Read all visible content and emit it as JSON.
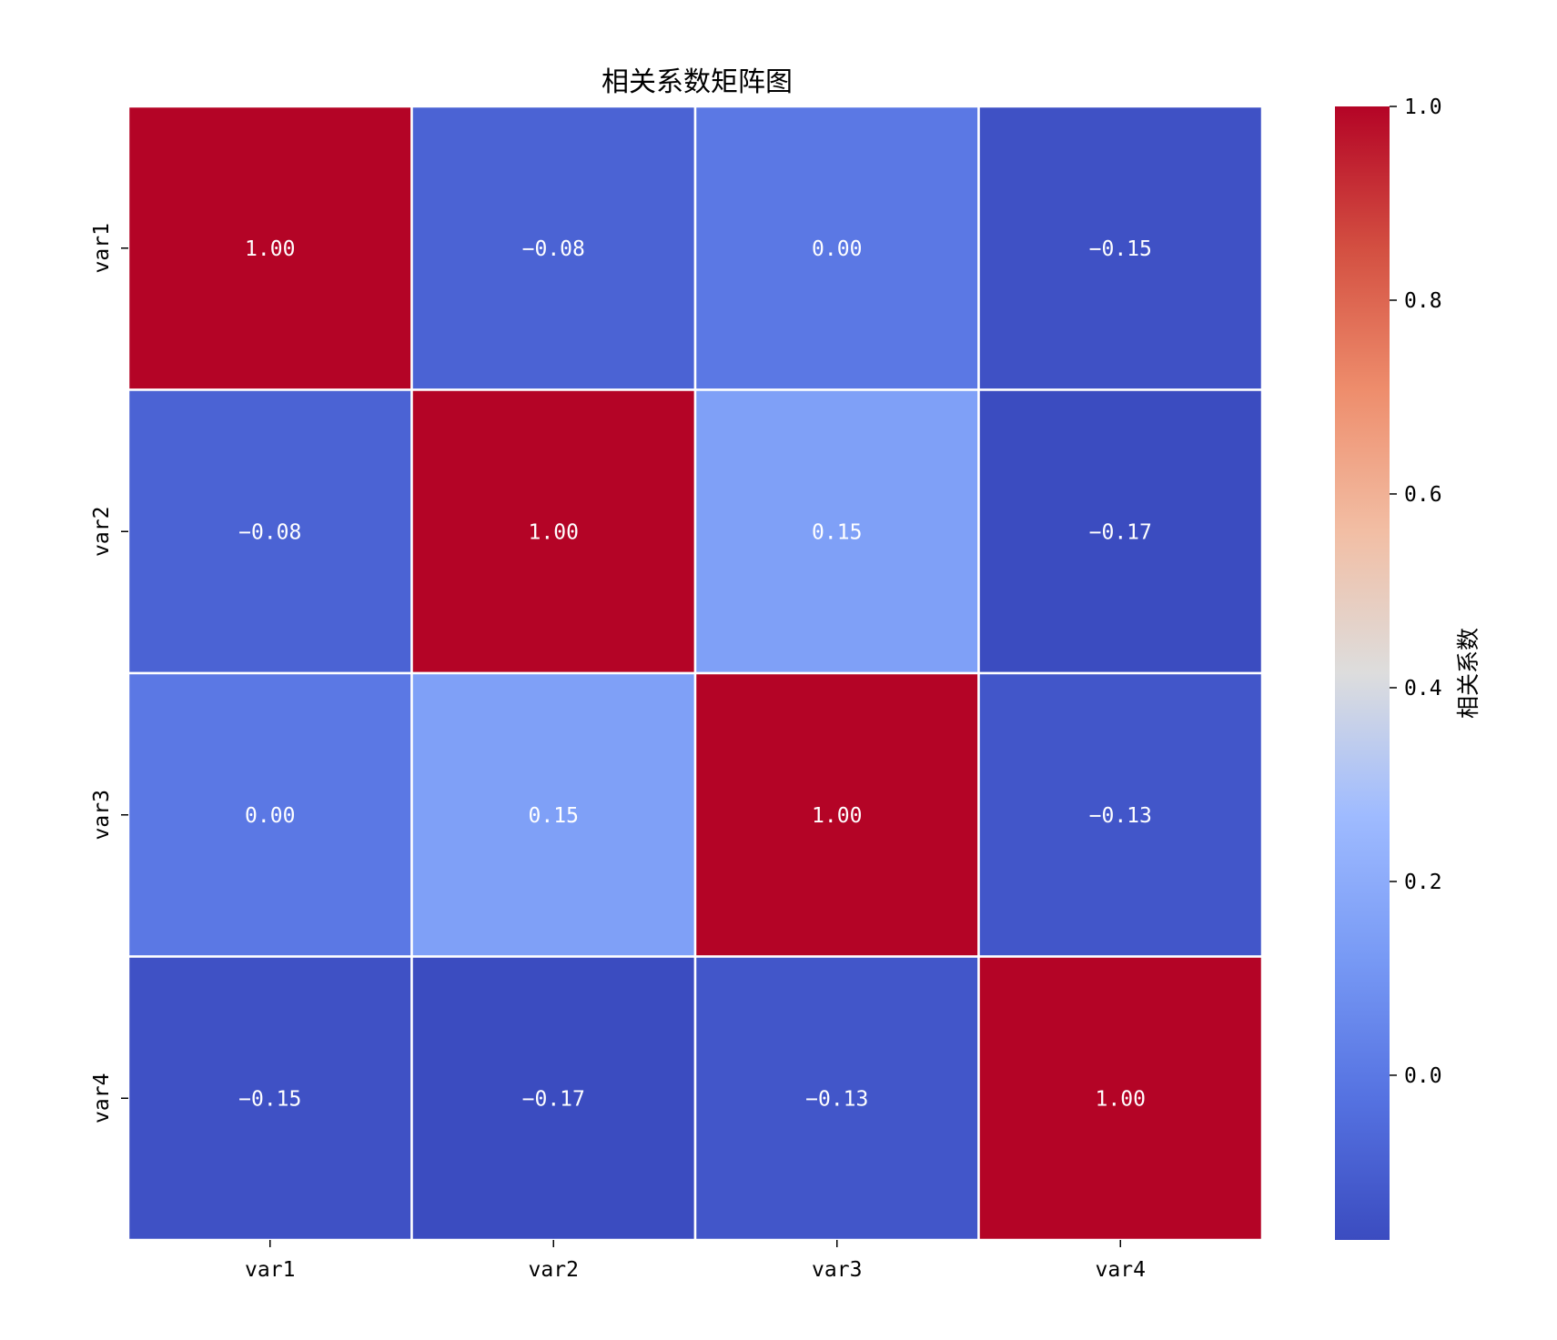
{
  "chart_data": {
    "type": "heatmap",
    "title": "相关系数矩阵图",
    "x_categories": [
      "var1",
      "var2",
      "var3",
      "var4"
    ],
    "y_categories": [
      "var1",
      "var2",
      "var3",
      "var4"
    ],
    "values": [
      [
        1.0,
        -0.08,
        0.0,
        -0.15
      ],
      [
        -0.08,
        1.0,
        0.15,
        -0.17
      ],
      [
        0.0,
        0.15,
        1.0,
        -0.13
      ],
      [
        -0.15,
        -0.17,
        -0.13,
        1.0
      ]
    ],
    "cell_labels": [
      [
        "1.00",
        "−0.08",
        "0.00",
        "−0.15"
      ],
      [
        "−0.08",
        "1.00",
        "0.15",
        "−0.17"
      ],
      [
        "0.00",
        "0.15",
        "1.00",
        "−0.13"
      ],
      [
        "−0.15",
        "−0.17",
        "−0.13",
        "1.00"
      ]
    ],
    "colormap": "coolwarm",
    "colorbar": {
      "label": "相关系数",
      "range": [
        -0.17,
        1.0
      ],
      "ticks": [
        0.0,
        0.2,
        0.4,
        0.6,
        0.8,
        1.0
      ],
      "tick_labels": [
        "0.0",
        "0.2",
        "0.4",
        "0.6",
        "0.8",
        "1.0"
      ]
    },
    "grid_line_color": "#ffffff"
  }
}
